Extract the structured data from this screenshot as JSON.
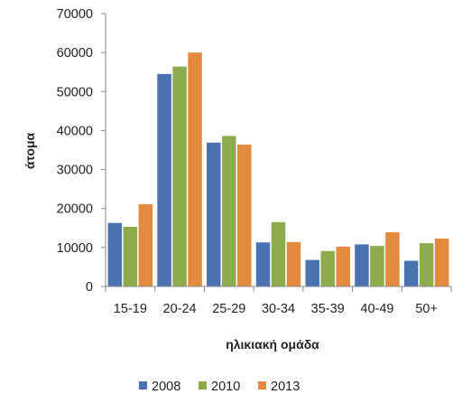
{
  "chart_data": {
    "type": "bar",
    "title": "",
    "xlabel": "ηλικιακή ομάδα",
    "ylabel": "άτομα",
    "ylim": [
      0,
      70000
    ],
    "yticks": [
      0,
      10000,
      20000,
      30000,
      40000,
      50000,
      60000,
      70000
    ],
    "grid": false,
    "legend_position": "bottom",
    "categories": [
      "15-19",
      "20-24",
      "25-29",
      "30-34",
      "35-39",
      "40-49",
      "50+"
    ],
    "series": [
      {
        "name": "2008",
        "color": "#4a72b0",
        "values": [
          16300,
          54500,
          36900,
          11300,
          6800,
          10800,
          6600
        ]
      },
      {
        "name": "2010",
        "color": "#8cac4c",
        "values": [
          15300,
          56400,
          38600,
          16500,
          9100,
          10400,
          11100
        ]
      },
      {
        "name": "2013",
        "color": "#e48a3e",
        "values": [
          21100,
          60000,
          36400,
          11400,
          10200,
          13900,
          12300
        ]
      }
    ]
  }
}
